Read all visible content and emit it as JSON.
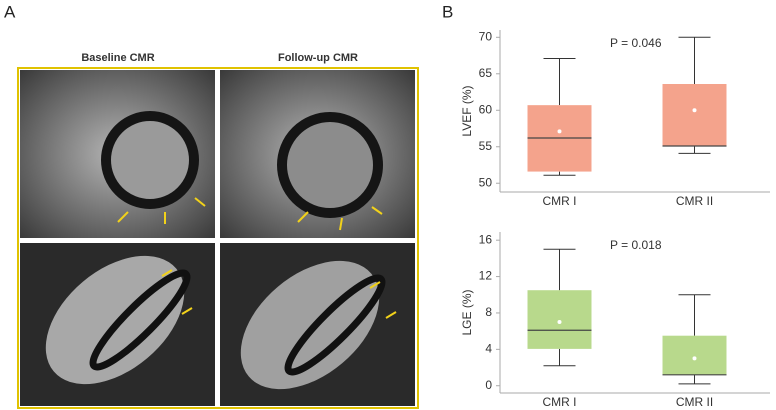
{
  "panels": {
    "a": {
      "label": "A",
      "columns": [
        "Baseline CMR",
        "Follow-up CMR"
      ]
    },
    "b": {
      "label": "B"
    }
  },
  "chart_data": [
    {
      "type": "box",
      "y_label": "LVEF (%)",
      "annotation": "P = 0.046",
      "categories": [
        "CMR I",
        "CMR II"
      ],
      "color": "#f4a38c",
      "min": [
        51.1,
        54.1
      ],
      "q1": [
        51.6,
        55.1
      ],
      "median": [
        56.2,
        55.1
      ],
      "q3": [
        60.7,
        63.6
      ],
      "max": [
        67.1,
        70
      ],
      "mean": [
        57.1,
        60
      ],
      "ylim": [
        48.8,
        71
      ],
      "yticks": [
        50,
        55,
        60,
        65,
        70
      ]
    },
    {
      "type": "box",
      "y_label": "LGE (%)",
      "annotation": "P = 0.018",
      "categories": [
        "CMR I",
        "CMR II"
      ],
      "color": "#b8d98c",
      "min": [
        2.2,
        0.2
      ],
      "q1": [
        4.05,
        1.2
      ],
      "median": [
        6.1,
        1.2
      ],
      "q3": [
        10.5,
        5.5
      ],
      "max": [
        15,
        10
      ],
      "mean": [
        7,
        3
      ],
      "ylim": [
        -0.8,
        16.9
      ],
      "yticks": [
        0,
        4,
        8,
        12,
        16
      ]
    }
  ]
}
